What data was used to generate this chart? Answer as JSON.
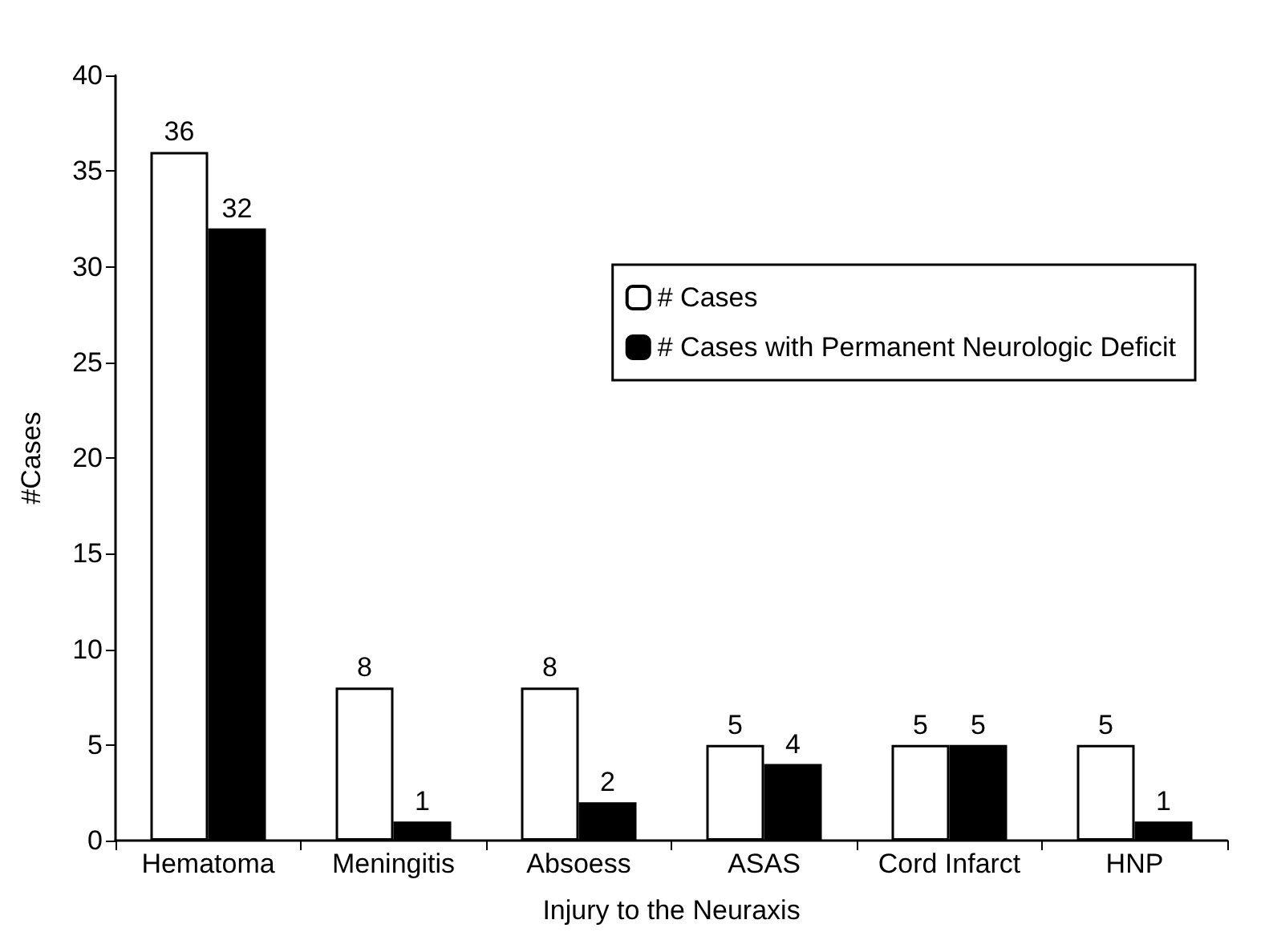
{
  "chart_data": {
    "type": "bar",
    "xlabel": "Injury to the Neuraxis",
    "ylabel": "#Cases",
    "categories": [
      "Hematoma",
      "Meningitis",
      "Absoess",
      "ASAS",
      "Cord Infarct",
      "HNP"
    ],
    "series": [
      {
        "name": "# Cases",
        "color": "#ffffff",
        "values": [
          36,
          8,
          8,
          5,
          5,
          5
        ]
      },
      {
        "name": "# Cases with Permanent Neurologic Deficit",
        "color": "#000000",
        "values": [
          32,
          1,
          2,
          4,
          5,
          1
        ]
      }
    ],
    "ylim": [
      0,
      40
    ],
    "yticks": [
      0,
      5,
      10,
      15,
      20,
      25,
      30,
      35,
      40
    ],
    "grid": false,
    "legend": "right",
    "data_labels": true
  }
}
